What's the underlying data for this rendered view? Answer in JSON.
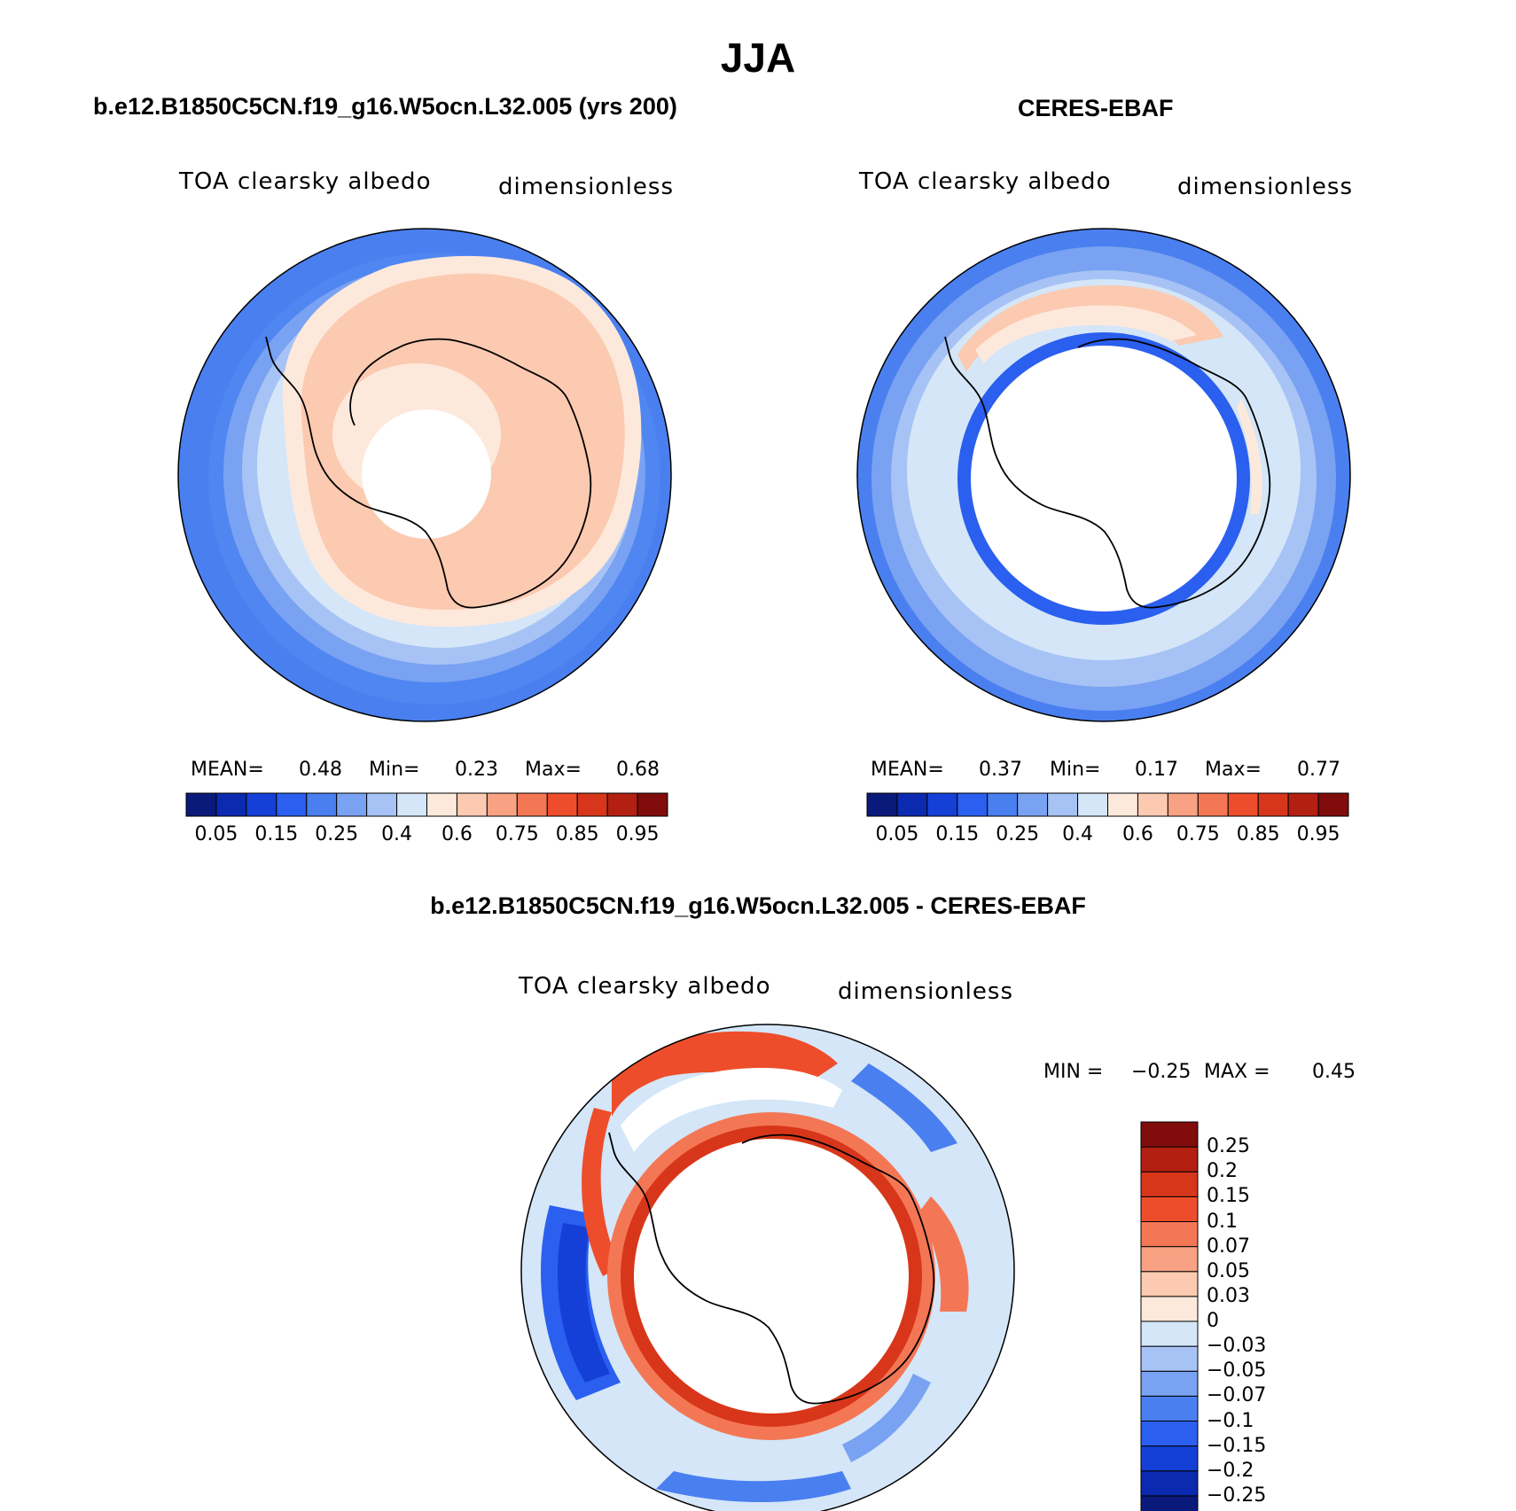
{
  "figure": {
    "title": "JJA"
  },
  "panels": [
    {
      "title": "b.e12.B1850C5CN.f19_g16.W5ocn.L32.005 (yrs 200)",
      "variable": "TOA clearsky albedo",
      "units": "dimensionless",
      "stats": {
        "mean_label": "MEAN=",
        "mean": "0.48",
        "min_label": "Min=",
        "min": "0.23",
        "max_label": "Max=",
        "max": "0.68"
      }
    },
    {
      "title": "CERES-EBAF",
      "variable": "TOA clearsky albedo",
      "units": "dimensionless",
      "stats": {
        "mean_label": "MEAN=",
        "mean": "0.37",
        "min_label": "Min=",
        "min": "0.17",
        "max_label": "Max=",
        "max": "0.77"
      }
    }
  ],
  "difference": {
    "title": "b.e12.B1850C5CN.f19_g16.W5ocn.L32.005 - CERES-EBAF",
    "variable": "TOA clearsky albedo",
    "units": "dimensionless",
    "min_label": "MIN =",
    "min": "−0.25",
    "max_label": "MAX =",
    "max": "0.45"
  },
  "colorbar_abs": {
    "colors": [
      "#0a1a7a",
      "#0b2ab0",
      "#1440d8",
      "#2a5fef",
      "#4a7ff0",
      "#7aa2f2",
      "#a7c3f5",
      "#d4e6f8",
      "#fde9dc",
      "#fbcab0",
      "#f8a283",
      "#f47755",
      "#ee4d2b",
      "#d8361a",
      "#b32011",
      "#800c0b"
    ],
    "tick_labels": [
      "0.05",
      "0.15",
      "0.25",
      "0.4",
      "0.6",
      "0.75",
      "0.85",
      "0.95"
    ]
  },
  "colorbar_diff": {
    "colors": [
      "#0a1a7a",
      "#0b2ab0",
      "#1440d8",
      "#2a5fef",
      "#4a7ff0",
      "#7aa2f2",
      "#a7c3f5",
      "#d4e6f8",
      "#fde9dc",
      "#fbcab0",
      "#f8a283",
      "#f47755",
      "#ee4d2b",
      "#d8361a",
      "#b32011",
      "#800c0b"
    ],
    "tick_labels": [
      "−0.25",
      "−0.2",
      "−0.15",
      "−0.1",
      "−0.07",
      "−0.05",
      "−0.03",
      "0",
      "0.03",
      "0.05",
      "0.07",
      "0.1",
      "0.15",
      "0.2",
      "0.25"
    ]
  }
}
